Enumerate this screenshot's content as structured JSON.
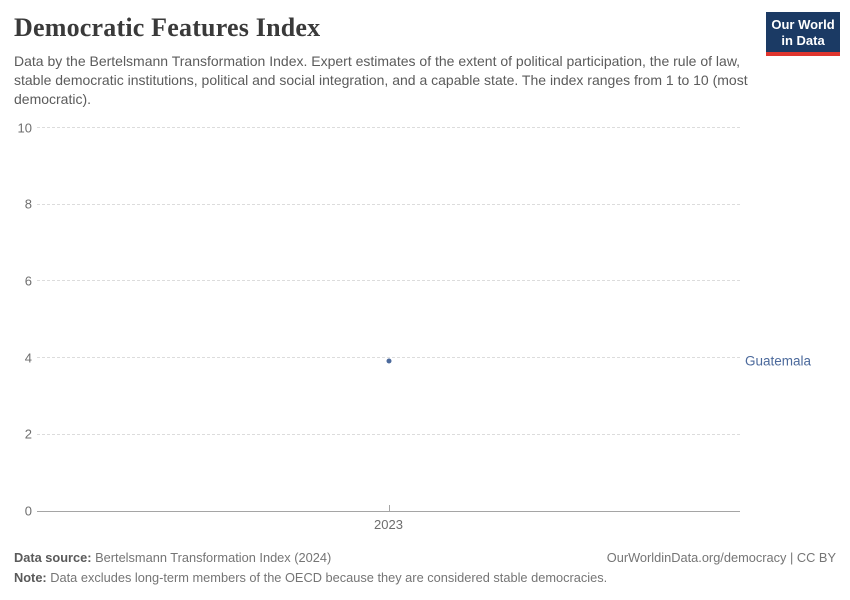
{
  "header": {
    "title": "Democratic Features Index",
    "subtitle": "Data by the Bertelsmann Transformation Index. Expert estimates of the extent of political participation, the rule of law, stable democratic institutions, political and social integration, and a capable state. The index ranges from 1 to 10 (most democratic).",
    "logo": {
      "line1": "Our World",
      "line2": "in Data",
      "bg_color": "#1b3a64",
      "accent_color": "#e0352e"
    }
  },
  "chart_data": {
    "type": "scatter",
    "title": "Democratic Features Index",
    "x": [
      2023
    ],
    "xticks": [
      "2023"
    ],
    "series": [
      {
        "name": "Guatemala",
        "values": [
          3.9
        ],
        "color": "#4c6a9c"
      }
    ],
    "ylim": [
      0,
      10
    ],
    "yticks": [
      0,
      2,
      4,
      6,
      8,
      10
    ],
    "xlabel": "",
    "ylabel": "",
    "grid": "horizontal-dashed",
    "legend_position": "right-entity-label",
    "gridline_color": "#dcdcdc",
    "axis_color": "#a5a5a5",
    "tick_label_color": "#6e6e6e"
  },
  "footer": {
    "data_source_label": "Data source:",
    "data_source": "Bertelsmann Transformation Index (2024)",
    "attribution": "OurWorldinData.org/democracy | CC BY",
    "note_label": "Note:",
    "note": "Data excludes long-term members of the OECD because they are considered stable democracies."
  }
}
